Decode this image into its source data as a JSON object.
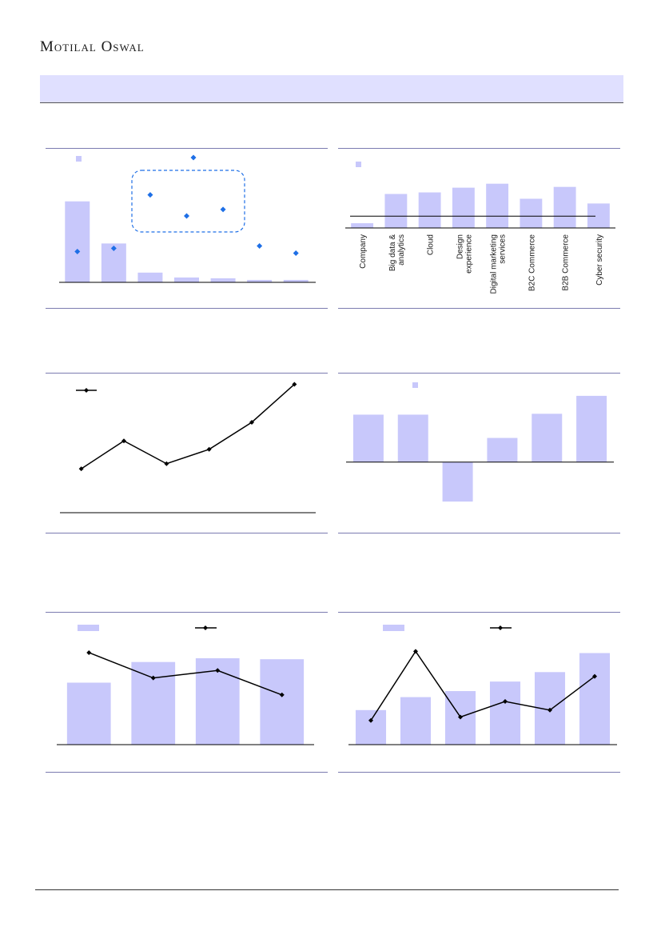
{
  "header": {
    "brand": "Motilal Oswal"
  },
  "colors": {
    "bar": "#c8c8fb",
    "marker": "#1e6fe6",
    "line": "#000000",
    "rule": "#7b7bb0",
    "banner": "#e0e0ff"
  },
  "chart_data": [
    {
      "type": "bar",
      "categories": [
        "",
        "",
        "",
        "",
        "",
        "",
        ""
      ],
      "series": [
        {
          "values": [
            100,
            48,
            12,
            6,
            5,
            3,
            3
          ]
        },
        {
          "type": "scatter",
          "values": [
            38,
            42,
            108,
            82,
            90,
            45,
            36
          ]
        }
      ],
      "highlight_box": true,
      "ylim": [
        0,
        160
      ]
    },
    {
      "type": "bar",
      "categories": [
        "Company",
        "Big data & analytics",
        "Cloud",
        "Design experience",
        "Digital marketing services",
        "B2C Commerce",
        "B2B Commerce",
        "Cyber security"
      ],
      "values": [
        6,
        43,
        45,
        51,
        56,
        37,
        52,
        31
      ],
      "reference_line": 15,
      "ylim": [
        0,
        80
      ]
    },
    {
      "type": "line",
      "categories": [
        "",
        "",
        "",
        "",
        "",
        ""
      ],
      "values": [
        52,
        85,
        58,
        75,
        107,
        152
      ],
      "ylim": [
        0,
        160
      ]
    },
    {
      "type": "bar",
      "categories": [
        "",
        "",
        "",
        "",
        "",
        ""
      ],
      "values": [
        53,
        53,
        -44,
        27,
        54,
        74
      ],
      "ylim": [
        -60,
        90
      ]
    },
    {
      "type": "bar",
      "categories": [
        "",
        "",
        "",
        ""
      ],
      "series": [
        {
          "values": [
            66,
            88,
            92,
            91
          ]
        },
        {
          "type": "line",
          "values": [
            98,
            71,
            79,
            53
          ]
        }
      ],
      "ylim": [
        0,
        115
      ]
    },
    {
      "type": "bar",
      "categories": [
        "",
        "",
        "",
        "",
        "",
        ""
      ],
      "series": [
        {
          "values": [
            40,
            55,
            62,
            73,
            84,
            106
          ]
        },
        {
          "type": "line",
          "values": [
            28,
            108,
            32,
            50,
            40,
            79
          ]
        }
      ],
      "ylim": [
        0,
        125
      ]
    }
  ]
}
